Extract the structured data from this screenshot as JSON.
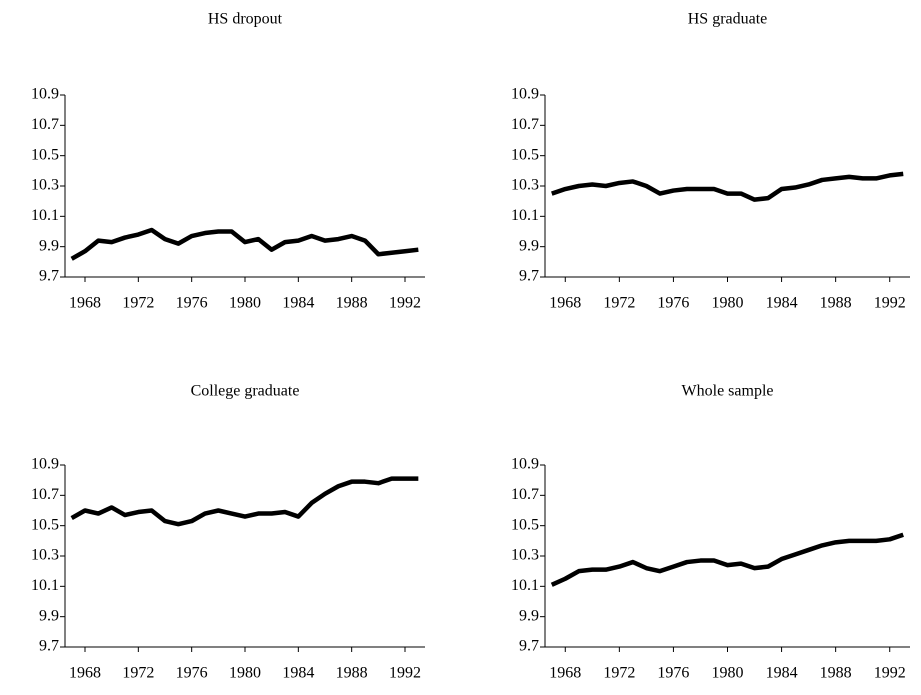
{
  "chart_data": [
    {
      "type": "line",
      "title": "HS dropout",
      "x": [
        1967,
        1968,
        1969,
        1970,
        1971,
        1972,
        1973,
        1974,
        1975,
        1976,
        1977,
        1978,
        1979,
        1980,
        1981,
        1982,
        1983,
        1984,
        1985,
        1986,
        1987,
        1988,
        1989,
        1990,
        1991,
        1992,
        1993
      ],
      "series": [
        {
          "name": "HS dropout",
          "color": "#000000",
          "values": [
            9.82,
            9.87,
            9.94,
            9.93,
            9.96,
            9.98,
            10.01,
            9.95,
            9.92,
            9.97,
            9.99,
            10.0,
            10.0,
            9.93,
            9.95,
            9.88,
            9.93,
            9.94,
            9.97,
            9.94,
            9.95,
            9.97,
            9.94,
            9.85,
            9.86,
            9.87,
            9.88
          ]
        }
      ],
      "xlim": [
        1966.5,
        1993.5
      ],
      "xticks": [
        1968,
        1972,
        1976,
        1980,
        1984,
        1988,
        1992
      ],
      "ylim": [
        9.7,
        10.9
      ],
      "yticks": [
        9.7,
        9.9,
        10.1,
        10.3,
        10.5,
        10.7,
        10.9
      ]
    },
    {
      "type": "line",
      "title": "HS graduate",
      "x": [
        1967,
        1968,
        1969,
        1970,
        1971,
        1972,
        1973,
        1974,
        1975,
        1976,
        1977,
        1978,
        1979,
        1980,
        1981,
        1982,
        1983,
        1984,
        1985,
        1986,
        1987,
        1988,
        1989,
        1990,
        1991,
        1992,
        1993
      ],
      "series": [
        {
          "name": "HS graduate",
          "color": "#000000",
          "values": [
            10.25,
            10.28,
            10.3,
            10.31,
            10.3,
            10.32,
            10.33,
            10.3,
            10.25,
            10.27,
            10.28,
            10.28,
            10.28,
            10.25,
            10.25,
            10.21,
            10.22,
            10.28,
            10.29,
            10.31,
            10.34,
            10.35,
            10.36,
            10.35,
            10.35,
            10.37,
            10.38
          ]
        }
      ],
      "xlim": [
        1966.5,
        1993.5
      ],
      "xticks": [
        1968,
        1972,
        1976,
        1980,
        1984,
        1988,
        1992
      ],
      "ylim": [
        9.7,
        10.9
      ],
      "yticks": [
        9.7,
        9.9,
        10.1,
        10.3,
        10.5,
        10.7,
        10.9
      ]
    },
    {
      "type": "line",
      "title": "College graduate",
      "x": [
        1967,
        1968,
        1969,
        1970,
        1971,
        1972,
        1973,
        1974,
        1975,
        1976,
        1977,
        1978,
        1979,
        1980,
        1981,
        1982,
        1983,
        1984,
        1985,
        1986,
        1987,
        1988,
        1989,
        1990,
        1991,
        1992,
        1993
      ],
      "series": [
        {
          "name": "College graduate",
          "color": "#000000",
          "values": [
            10.55,
            10.6,
            10.58,
            10.62,
            10.57,
            10.59,
            10.6,
            10.53,
            10.51,
            10.53,
            10.58,
            10.6,
            10.58,
            10.56,
            10.58,
            10.58,
            10.59,
            10.56,
            10.65,
            10.71,
            10.76,
            10.79,
            10.79,
            10.78,
            10.81,
            10.81,
            10.81
          ]
        }
      ],
      "xlim": [
        1966.5,
        1993.5
      ],
      "xticks": [
        1968,
        1972,
        1976,
        1980,
        1984,
        1988,
        1992
      ],
      "ylim": [
        9.7,
        10.9
      ],
      "yticks": [
        9.7,
        9.9,
        10.1,
        10.3,
        10.5,
        10.7,
        10.9
      ]
    },
    {
      "type": "line",
      "title": "Whole sample",
      "x": [
        1967,
        1968,
        1969,
        1970,
        1971,
        1972,
        1973,
        1974,
        1975,
        1976,
        1977,
        1978,
        1979,
        1980,
        1981,
        1982,
        1983,
        1984,
        1985,
        1986,
        1987,
        1988,
        1989,
        1990,
        1991,
        1992,
        1993
      ],
      "series": [
        {
          "name": "Whole sample",
          "color": "#000000",
          "values": [
            10.11,
            10.15,
            10.2,
            10.21,
            10.21,
            10.23,
            10.26,
            10.22,
            10.2,
            10.23,
            10.26,
            10.27,
            10.27,
            10.24,
            10.25,
            10.22,
            10.23,
            10.28,
            10.31,
            10.34,
            10.37,
            10.39,
            10.4,
            10.4,
            10.4,
            10.41,
            10.44
          ]
        }
      ],
      "xlim": [
        1966.5,
        1993.5
      ],
      "xticks": [
        1968,
        1972,
        1976,
        1980,
        1984,
        1988,
        1992
      ],
      "ylim": [
        9.7,
        10.9
      ],
      "yticks": [
        9.7,
        9.9,
        10.1,
        10.3,
        10.5,
        10.7,
        10.9
      ]
    }
  ]
}
